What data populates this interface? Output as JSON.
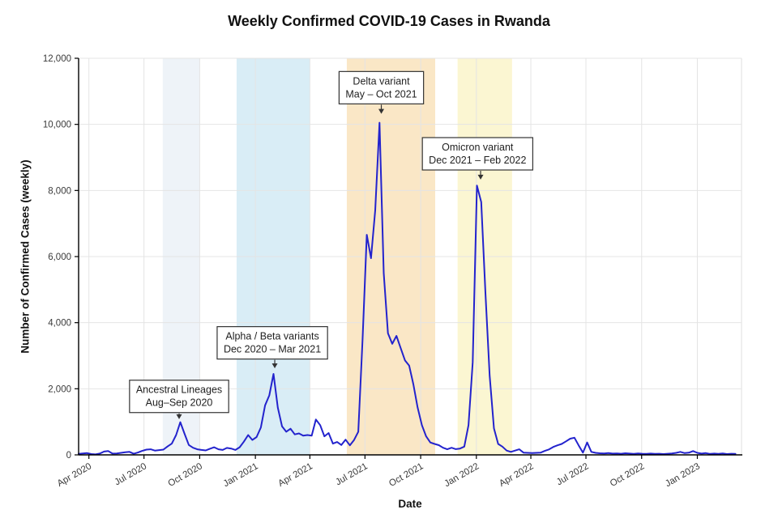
{
  "title": "Weekly Confirmed COVID-19 Cases in Rwanda",
  "chart_data": {
    "type": "line",
    "title": "Weekly Confirmed COVID-19 Cases in Rwanda",
    "xlabel": "Date",
    "ylabel": "Number of Confirmed Cases (weekly)",
    "ylim": [
      0,
      12000
    ],
    "grid": true,
    "legend": "none",
    "x_domain": {
      "start": "2020-03-15",
      "end": "2023-03-15"
    },
    "yticks": [
      {
        "value": 0,
        "label": "0"
      },
      {
        "value": 2000,
        "label": "2,000"
      },
      {
        "value": 4000,
        "label": "4,000"
      },
      {
        "value": 6000,
        "label": "6,000"
      },
      {
        "value": 8000,
        "label": "8,000"
      },
      {
        "value": 10000,
        "label": "10,000"
      },
      {
        "value": 12000,
        "label": "12,000"
      }
    ],
    "xticks": [
      {
        "date": "2020-04-01",
        "label": "Apr 2020"
      },
      {
        "date": "2020-07-01",
        "label": "Jul 2020"
      },
      {
        "date": "2020-10-01",
        "label": "Oct 2020"
      },
      {
        "date": "2021-01-01",
        "label": "Jan 2021"
      },
      {
        "date": "2021-04-01",
        "label": "Apr 2021"
      },
      {
        "date": "2021-07-01",
        "label": "Jul 2021"
      },
      {
        "date": "2021-10-01",
        "label": "Oct 2021"
      },
      {
        "date": "2022-01-01",
        "label": "Jan 2022"
      },
      {
        "date": "2022-04-01",
        "label": "Apr 2022"
      },
      {
        "date": "2022-07-01",
        "label": "Jul 2022"
      },
      {
        "date": "2022-10-01",
        "label": "Oct 2022"
      },
      {
        "date": "2023-01-01",
        "label": "Jan 2023"
      }
    ],
    "bands": [
      {
        "name": "ancestral-band",
        "color": "#eef3f8",
        "start": "2020-08-01",
        "end": "2020-10-01"
      },
      {
        "name": "alpha-beta-band",
        "color": "#d9edf6",
        "start": "2020-12-01",
        "end": "2021-04-01"
      },
      {
        "name": "delta-band",
        "color": "#fae7c6",
        "start": "2021-06-01",
        "end": "2021-10-25"
      },
      {
        "name": "omicron-band",
        "color": "#fbf6d2",
        "start": "2021-12-01",
        "end": "2022-03-01"
      }
    ],
    "annotations": [
      {
        "name": "ancestral-annotation",
        "lines": [
          "Ancestral Lineages",
          "Aug–Sep 2020"
        ],
        "box_center_date": "2020-08-28",
        "box_bottom_value": 1280,
        "arrow_date": "2020-08-28",
        "arrow_tip_value": 1080
      },
      {
        "name": "alpha-beta-annotation",
        "lines": [
          "Alpha / Beta variants",
          "Dec 2020 – Mar 2021"
        ],
        "box_center_date": "2021-01-29",
        "box_bottom_value": 2900,
        "arrow_date": "2021-02-02",
        "arrow_tip_value": 2620
      },
      {
        "name": "delta-annotation",
        "lines": [
          "Delta variant",
          "May – Oct 2021"
        ],
        "box_center_date": "2021-07-28",
        "box_bottom_value": 10620,
        "arrow_date": "2021-07-28",
        "arrow_tip_value": 10320
      },
      {
        "name": "omicron-annotation",
        "lines": [
          "Omicron variant",
          "Dec 2021 – Feb 2022"
        ],
        "box_center_date": "2022-01-03",
        "box_bottom_value": 8620,
        "arrow_date": "2022-01-08",
        "arrow_tip_value": 8330
      }
    ],
    "series": [
      {
        "name": "Weekly confirmed cases",
        "start_date": "2020-03-15",
        "interval_days": 7,
        "color": "#2323cd",
        "values": [
          30,
          45,
          55,
          25,
          15,
          40,
          100,
          115,
          40,
          45,
          60,
          80,
          90,
          35,
          70,
          120,
          160,
          170,
          130,
          145,
          160,
          255,
          340,
          600,
          990,
          640,
          300,
          215,
          170,
          150,
          135,
          185,
          230,
          170,
          150,
          210,
          190,
          150,
          230,
          400,
          600,
          450,
          540,
          830,
          1500,
          1800,
          2450,
          1430,
          865,
          700,
          790,
          620,
          650,
          580,
          600,
          580,
          1070,
          900,
          560,
          660,
          340,
          390,
          300,
          460,
          290,
          450,
          700,
          3500,
          6660,
          5950,
          7400,
          10050,
          5500,
          3680,
          3360,
          3600,
          3230,
          2860,
          2700,
          2130,
          1435,
          900,
          560,
          375,
          330,
          295,
          215,
          170,
          215,
          175,
          190,
          250,
          900,
          2800,
          8150,
          7650,
          4900,
          2400,
          800,
          330,
          250,
          130,
          90,
          130,
          170,
          65,
          60,
          55,
          60,
          65,
          120,
          165,
          240,
          290,
          330,
          410,
          490,
          520,
          290,
          65,
          375,
          90,
          60,
          50,
          45,
          55,
          40,
          45,
          35,
          50,
          40,
          30,
          45,
          35,
          30,
          40,
          30,
          35,
          25,
          35,
          45,
          60,
          90,
          55,
          65,
          115,
          60,
          40,
          55,
          30,
          40,
          30,
          45,
          25,
          35,
          30
        ]
      }
    ],
    "colors": {
      "line": "#2323cd",
      "grid": "#e4e4e4",
      "axis": "#000000",
      "tick_text": "#3a3a3a",
      "annotation_border": "#333333",
      "annotation_text": "#222222",
      "background": "#ffffff"
    }
  }
}
